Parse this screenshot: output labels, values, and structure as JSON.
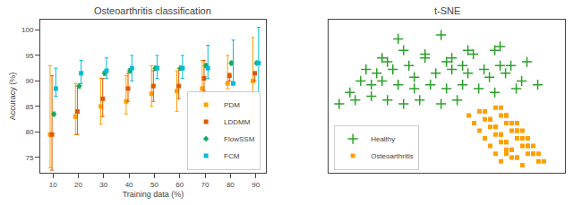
{
  "chart_data": [
    {
      "type": "scatter",
      "title": "Osteoarthritis classification",
      "xlabel": "Training data (%)",
      "ylabel": "Accuracy (%)",
      "x": [
        10,
        20,
        30,
        40,
        50,
        60,
        70,
        80,
        90
      ],
      "xlim": [
        5,
        94
      ],
      "xticks": [
        10,
        20,
        30,
        40,
        50,
        60,
        70,
        80,
        90
      ],
      "ylim": [
        72,
        102
      ],
      "yticks": [
        75,
        80,
        85,
        90,
        95,
        100
      ],
      "grid": false,
      "legend": "lower right",
      "series": [
        {
          "name": "PDM",
          "color": "#ff9f00",
          "marker": "square",
          "values": [
            79.5,
            83.0,
            85.0,
            86.0,
            87.5,
            88.0,
            88.5,
            89.5,
            90.0
          ],
          "errors_low": [
            6.5,
            3.5,
            3.5,
            2.5,
            2.5,
            4.0,
            2.5,
            1.0,
            8.0
          ],
          "errors_high": [
            13.5,
            6.5,
            5.5,
            5.0,
            5.5,
            4.0,
            5.5,
            5.5,
            8.5
          ]
        },
        {
          "name": "LDDMM",
          "color": "#e05800",
          "marker": "square",
          "values": [
            79.5,
            84.0,
            86.5,
            88.5,
            89.0,
            89.0,
            90.5,
            91.0,
            91.5
          ],
          "errors_low": [
            7.0,
            4.5,
            3.5,
            2.5,
            3.0,
            2.5,
            2.5,
            1.0,
            1.5
          ],
          "errors_high": [
            11.5,
            5.0,
            4.0,
            3.0,
            3.0,
            3.5,
            3.5,
            0.5,
            0.0
          ]
        },
        {
          "name": "FlowSSM",
          "color": "#17a85a",
          "marker": "diamond",
          "values": [
            83.5,
            89.0,
            91.5,
            92.0,
            92.5,
            92.5,
            93.0,
            93.5,
            93.5
          ],
          "errors_low": [
            0.4,
            0.4,
            0.4,
            0.4,
            0.4,
            0.4,
            0.4,
            0.4,
            0.4
          ],
          "errors_high": [
            0.4,
            0.4,
            0.4,
            0.4,
            0.4,
            0.4,
            0.4,
            0.4,
            0.4
          ]
        },
        {
          "name": "FCM",
          "color": "#00bcd4",
          "marker": "square",
          "values": [
            88.5,
            91.5,
            92.0,
            92.5,
            92.5,
            92.5,
            92.5,
            89.5,
            93.5
          ],
          "errors_low": [
            1.5,
            2.0,
            1.5,
            2.5,
            2.0,
            2.0,
            2.0,
            0.0,
            6.0
          ],
          "errors_high": [
            4.0,
            2.5,
            2.5,
            2.5,
            2.5,
            2.5,
            4.5,
            8.5,
            7.0
          ]
        }
      ]
    },
    {
      "type": "scatter",
      "title": "t-SNE",
      "xlim": [
        -10,
        12
      ],
      "ylim": [
        -6,
        14
      ],
      "grid": false,
      "tick_labels": false,
      "legend": "lower left",
      "series": [
        {
          "name": "Healthy",
          "color": "#2ca02c",
          "marker": "cross",
          "x": [
            -3.5,
            0.5,
            3.0,
            6.0,
            -5.0,
            -3.0,
            -1.0,
            1.5,
            3.5,
            5.5,
            7.0,
            -6.5,
            -4.5,
            -2.5,
            -1.0,
            1.0,
            2.5,
            4.5,
            6.0,
            8.5,
            -7.0,
            -5.5,
            -4.0,
            -2.0,
            0.0,
            1.5,
            3.0,
            5.0,
            6.5,
            8.0,
            -8.0,
            -6.0,
            -5.0,
            -3.5,
            -2.0,
            -0.5,
            1.0,
            2.5,
            4.0,
            5.5,
            7.5,
            9.5,
            -9.0,
            -7.5,
            -6.0,
            -4.5,
            -3.0,
            -1.5,
            0.5,
            2.0
          ],
          "values": [
            11.5,
            12.0,
            10.0,
            10.5,
            9.0,
            10.0,
            9.5,
            9.0,
            9.5,
            10.0,
            8.0,
            7.5,
            8.5,
            8.0,
            9.0,
            8.5,
            8.0,
            7.5,
            8.0,
            8.5,
            6.0,
            7.0,
            7.5,
            6.5,
            7.0,
            7.5,
            7.0,
            6.5,
            7.0,
            6.0,
            4.5,
            5.5,
            6.0,
            5.5,
            5.0,
            5.5,
            5.0,
            5.5,
            5.0,
            4.5,
            5.0,
            5.5,
            3.0,
            3.5,
            4.0,
            3.5,
            3.0,
            3.5,
            3.0,
            3.5
          ]
        },
        {
          "name": "Osteoarthritis",
          "color": "#ff9f00",
          "marker": "square",
          "x": [
            3.0,
            4.5,
            5.5,
            6.5,
            5.0,
            4.0,
            6.0,
            3.5,
            5.0,
            6.0,
            7.0,
            5.5,
            4.5,
            6.5,
            7.5,
            4.0,
            5.5,
            6.5,
            7.5,
            6.0,
            5.0,
            7.0,
            8.0,
            4.5,
            6.0,
            7.0,
            8.0,
            6.5,
            5.5,
            7.5,
            8.5,
            5.0,
            6.5,
            7.5,
            8.5,
            7.0,
            6.0,
            8.0,
            9.0,
            6.5,
            5.5,
            7.0,
            8.0,
            9.0,
            7.5,
            6.5,
            8.5,
            9.5,
            6.0,
            7.5,
            8.5,
            9.5,
            8.0,
            7.0,
            9.0,
            10.0
          ],
          "values": [
            1.5,
            2.0,
            2.5,
            1.5,
            1.0,
            2.0,
            2.5,
            0.5,
            1.0,
            1.5,
            0.5,
            0.0,
            1.0,
            1.5,
            0.5,
            -0.5,
            0.0,
            0.5,
            -0.5,
            -1.0,
            0.0,
            0.5,
            -0.5,
            -1.5,
            -1.0,
            -0.5,
            -1.5,
            -2.0,
            -1.0,
            -0.5,
            -1.5,
            -2.5,
            -2.0,
            -1.5,
            -2.5,
            -3.0,
            -2.0,
            -1.5,
            -2.5,
            -3.5,
            -3.5,
            -3.0,
            -2.5,
            -3.5,
            -4.0,
            -3.0,
            -2.5,
            -3.5,
            -4.5,
            -4.0,
            -3.5,
            -4.5,
            -5.0,
            -4.0,
            -3.5,
            -4.5
          ]
        }
      ]
    }
  ]
}
